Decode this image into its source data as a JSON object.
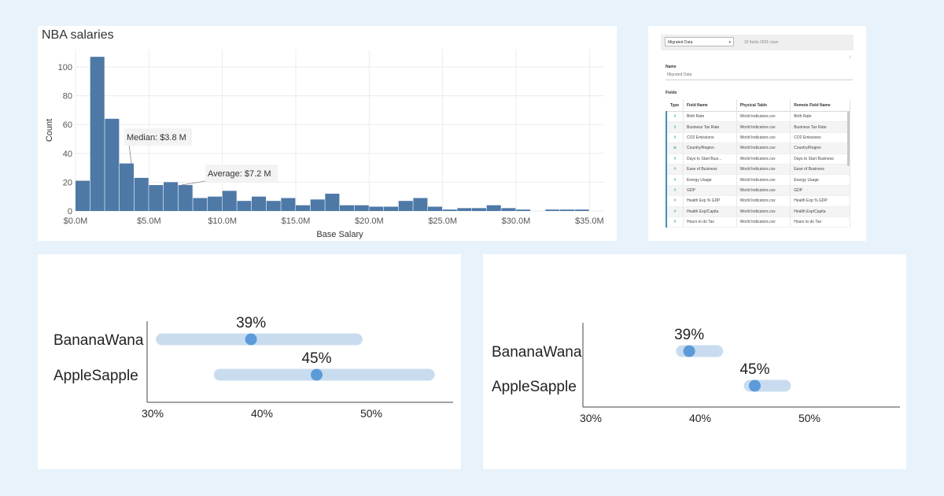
{
  "histogram": {
    "title": "NBA salaries",
    "chart_data": {
      "type": "bar",
      "title": "NBA salaries",
      "xlabel": "Base Salary",
      "ylabel": "Count",
      "bin_width_millions": 1,
      "bin_start_millions": 0,
      "values": [
        21,
        107,
        64,
        33,
        23,
        18,
        20,
        18,
        9,
        10,
        14,
        7,
        10,
        7,
        9,
        4,
        8,
        12,
        4,
        4,
        3,
        3,
        7,
        9,
        3,
        1,
        2,
        2,
        4,
        2,
        1,
        0,
        1,
        1,
        1
      ],
      "ylim": [
        0,
        112
      ],
      "yticks": [
        0,
        20,
        40,
        60,
        80,
        100
      ],
      "xtick_values": [
        0,
        5,
        10,
        15,
        20,
        25,
        30,
        35
      ],
      "xtick_labels": [
        "$0.0M",
        "$5.0M",
        "$10.0M",
        "$15.0M",
        "$20.0M",
        "$25.0M",
        "$30.0M",
        "$35.0M"
      ],
      "grid": true,
      "annotations": [
        {
          "label": "Median: $3.8 M",
          "value_millions": 3.8
        },
        {
          "label": "Average: $7.2 M",
          "value_millions": 7.2
        }
      ],
      "colors": {
        "bar": "#4e79a7",
        "grid": "#ececec"
      }
    }
  },
  "data_source": {
    "connection_select": "Migrated Data",
    "row_count_text": "32 fields 2691 rows",
    "small_mark": "i",
    "name_label": "Name",
    "name_value": "Migrated Data",
    "fields_label": "Fields",
    "columns": [
      "Type",
      "Field Name",
      "Physical Table",
      "Remote Field Name"
    ],
    "rows": [
      {
        "type_icon": "#",
        "field": "Birth Rate",
        "table": "World Indicators.csv",
        "remote": "Birth Rate"
      },
      {
        "type_icon": "#",
        "field": "Business Tax Rate",
        "table": "World Indicators.csv",
        "remote": "Business Tax Rate"
      },
      {
        "type_icon": "#",
        "field": "CO2 Emissions",
        "table": "World Indicators.csv",
        "remote": "CO2 Emissions"
      },
      {
        "type_icon": "⊕",
        "field": "Country/Region",
        "table": "World Indicators.csv",
        "remote": "Country/Region"
      },
      {
        "type_icon": "#",
        "field": "Days to Start Busi...",
        "table": "World Indicators.csv",
        "remote": "Days to Start Business"
      },
      {
        "type_icon": "#",
        "field": "Ease of Business",
        "table": "World Indicators.csv",
        "remote": "Ease of Business"
      },
      {
        "type_icon": "#",
        "field": "Energy Usage",
        "table": "World Indicators.csv",
        "remote": "Energy Usage"
      },
      {
        "type_icon": "#",
        "field": "GDP",
        "table": "World Indicators.csv",
        "remote": "GDP"
      },
      {
        "type_icon": "#",
        "field": "Health Exp % GDP",
        "table": "World Indicators.csv",
        "remote": "Health Exp % GDP"
      },
      {
        "type_icon": "#",
        "field": "Health Exp/Capita",
        "table": "World Indicators.csv",
        "remote": "Health Exp/Capita"
      },
      {
        "type_icon": "#",
        "field": "Hours to do Tax",
        "table": "World Indicators.csv",
        "remote": "Hours to do Tax"
      }
    ]
  },
  "dot_left": {
    "chart_data": {
      "type": "scatter",
      "categories": [
        "BananaWana",
        "AppleSapple"
      ],
      "values": [
        39,
        45
      ],
      "value_labels": [
        "39%",
        "45%"
      ],
      "ranges": [
        [
          30.3,
          49.2
        ],
        [
          35.6,
          55.8
        ]
      ],
      "xticks": [
        30,
        40,
        50
      ],
      "xtick_labels": [
        "30%",
        "40%",
        "50%"
      ],
      "xlim": [
        30,
        56
      ],
      "colors": {
        "dot": "#5b9bd9",
        "range": "#c9dcef",
        "axis": "#444444"
      }
    }
  },
  "dot_right": {
    "chart_data": {
      "type": "scatter",
      "categories": [
        "BananaWana",
        "AppleSapple"
      ],
      "values": [
        39,
        45
      ],
      "value_labels": [
        "39%",
        "45%"
      ],
      "ranges": [
        [
          37.8,
          42.1
        ],
        [
          44.0,
          48.3
        ]
      ],
      "xticks": [
        30,
        40,
        50
      ],
      "xtick_labels": [
        "30%",
        "40%",
        "50%"
      ],
      "xlim": [
        30,
        56
      ],
      "colors": {
        "dot": "#5b9bd9",
        "range": "#c9dcef",
        "axis": "#444444"
      }
    }
  }
}
